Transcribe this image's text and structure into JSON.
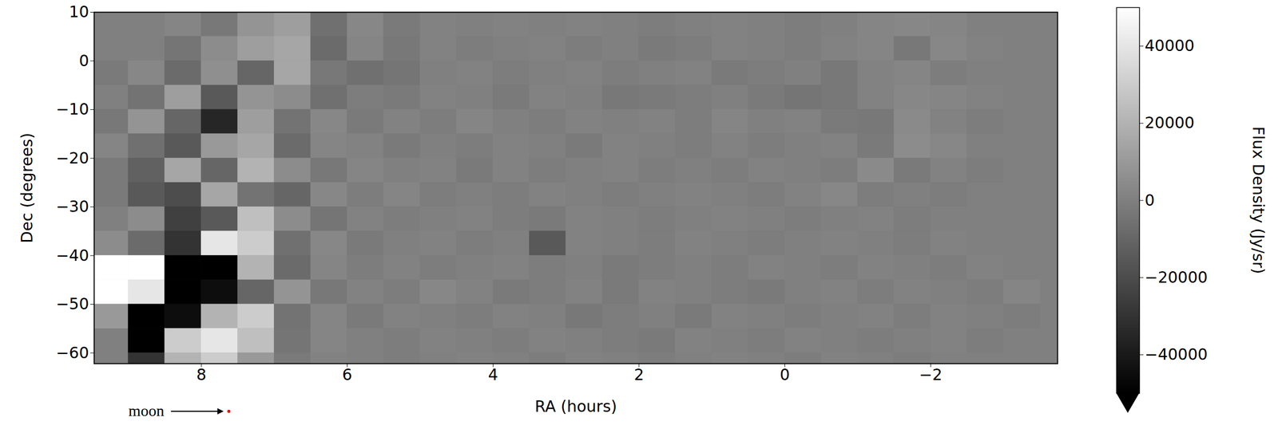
{
  "chart_data": {
    "type": "heatmap",
    "xlabel": "RA (hours)",
    "ylabel": "Dec (degrees)",
    "xlim": [
      9.47,
      -3.74
    ],
    "ylim": [
      -62.2,
      10
    ],
    "xticks": [
      8,
      6,
      4,
      2,
      0,
      {
        "value": -2,
        "label": "−2"
      }
    ],
    "yticks": [
      10,
      0,
      {
        "value": -10,
        "label": "−10"
      },
      {
        "value": -20,
        "label": "−20"
      },
      {
        "value": -30,
        "label": "−30"
      },
      {
        "value": -40,
        "label": "−40"
      },
      {
        "value": -50,
        "label": "−50"
      },
      {
        "value": -60,
        "label": "−60"
      }
    ],
    "ra_edges": [
      9.5,
      9,
      8.5,
      8,
      7.5,
      7,
      6.5,
      6,
      5.5,
      5,
      4.5,
      4,
      3.5,
      3,
      2.5,
      2,
      1.5,
      1,
      0.5,
      0,
      -0.5,
      -1,
      -1.5,
      -2,
      -2.5,
      -3,
      -3.5
    ],
    "dec_edges": [
      10,
      5,
      0,
      -5,
      -10,
      -15,
      -20,
      -25,
      -30,
      -35,
      -40,
      -45,
      -50,
      -55,
      -60,
      -65
    ],
    "cells": [
      [
        null,
        null,
        2000,
        -3000,
        8000,
        12000,
        -6000,
        3000,
        -2000,
        1000,
        0,
        1000,
        0,
        1000,
        0,
        -1000,
        0,
        1000,
        0,
        -1000,
        0,
        2000,
        3000,
        2000,
        null,
        null
      ],
      [
        null,
        0,
        -4000,
        5000,
        12000,
        15000,
        -8000,
        2000,
        -3000,
        1000,
        -1000,
        0,
        1000,
        -1000,
        0,
        -2000,
        -1000,
        1000,
        0,
        -1000,
        1000,
        2000,
        -3000,
        3000,
        1000,
        null
      ],
      [
        -2000,
        3000,
        -8000,
        6000,
        -10000,
        15000,
        -3000,
        -6000,
        -4000,
        0,
        1000,
        -1000,
        0,
        1000,
        -1000,
        0,
        1000,
        -2000,
        -1000,
        0,
        -3000,
        1000,
        2000,
        -1000,
        0,
        null
      ],
      [
        0,
        -5000,
        12000,
        -15000,
        8000,
        5000,
        -6000,
        -1000,
        -2000,
        1000,
        0,
        -2000,
        1000,
        0,
        -3000,
        -2000,
        -1000,
        0,
        -2000,
        -4000,
        -3000,
        1000,
        3000,
        2000,
        1000,
        null
      ],
      [
        -3000,
        8000,
        -10000,
        -35000,
        12000,
        -5000,
        3000,
        -2000,
        1000,
        -1000,
        2000,
        0,
        -1000,
        1000,
        0,
        1000,
        -1000,
        2000,
        0,
        1000,
        -2000,
        -3000,
        4000,
        1000,
        -1000,
        null
      ],
      [
        2000,
        -6000,
        -15000,
        10000,
        15000,
        -8000,
        2000,
        1000,
        -2000,
        0,
        -1000,
        1000,
        0,
        -2000,
        1000,
        0,
        -1000,
        1000,
        -1000,
        0,
        1000,
        -2000,
        5000,
        3000,
        0,
        null
      ],
      [
        -2000,
        -12000,
        15000,
        -10000,
        20000,
        5000,
        -3000,
        2000,
        0,
        1000,
        -2000,
        1000,
        -1000,
        0,
        1000,
        -1000,
        0,
        -1000,
        1000,
        0,
        -1000,
        4000,
        -2000,
        1000,
        -1000,
        null
      ],
      [
        -2000,
        -15000,
        -20000,
        15000,
        -5000,
        -10000,
        3000,
        -1000,
        2000,
        -1000,
        0,
        -1000,
        1000,
        0,
        -1000,
        0,
        1000,
        0,
        -1000,
        1000,
        3000,
        -1000,
        0,
        -1000,
        null,
        null
      ],
      [
        null,
        5000,
        -25000,
        -15000,
        25000,
        5000,
        -4000,
        1000,
        -1000,
        0,
        1000,
        -1000,
        -2000,
        1000,
        0,
        -1000,
        0,
        1000,
        0,
        -1000,
        0,
        1000,
        -1000,
        0,
        null,
        null
      ],
      [
        5000,
        -8000,
        -30000,
        40000,
        30000,
        -6000,
        3000,
        -2000,
        0,
        1000,
        -1000,
        0,
        -15000,
        1000,
        0,
        -1000,
        1000,
        0,
        -1000,
        0,
        1000,
        0,
        -1000,
        1000,
        0,
        null
      ],
      [
        50000,
        50000,
        -50000,
        -50000,
        20000,
        -8000,
        2000,
        -1000,
        1000,
        -1000,
        0,
        1000,
        -1000,
        0,
        -2000,
        -1000,
        0,
        -1000,
        1000,
        0,
        -1000,
        1000,
        0,
        -1000,
        1000,
        0
      ],
      [
        50000,
        40000,
        -50000,
        -45000,
        -10000,
        8000,
        -3000,
        1000,
        -1000,
        3000,
        1000,
        -2000,
        -1000,
        1000,
        -2000,
        1000,
        0,
        -1000,
        -2000,
        0,
        1000,
        -1000,
        1000,
        0,
        -1000,
        2000
      ],
      [
        10000,
        -50000,
        -45000,
        20000,
        30000,
        -5000,
        2000,
        -2000,
        1000,
        0,
        -1000,
        1000,
        0,
        -3000,
        -1000,
        0,
        -2000,
        1000,
        0,
        -1000,
        0,
        1000,
        -1000,
        1000,
        0,
        -1000
      ],
      [
        null,
        -50000,
        30000,
        40000,
        25000,
        -4000,
        2000,
        0,
        -1000,
        1000,
        0,
        -1000,
        1000,
        0,
        -1000,
        -2000,
        1000,
        0,
        -1000,
        1000,
        0,
        -1000,
        0,
        1000,
        -1000,
        0
      ],
      [
        null,
        -30000,
        20000,
        30000,
        10000,
        -2000,
        1000,
        0,
        -1000,
        0,
        1000,
        0,
        -1000,
        1000,
        0,
        -1000,
        0,
        1000,
        0,
        -1000,
        1000,
        0,
        -1000,
        0,
        null,
        null
      ]
    ],
    "colorbar": {
      "label": "Flux Density (Jy/sr)",
      "range": [
        -50000,
        50000
      ],
      "ticks": [
        {
          "value": -40000,
          "label": "−40000"
        },
        {
          "value": -20000,
          "label": "−20000"
        },
        0,
        20000,
        40000
      ]
    },
    "annotations": [
      {
        "text": "moon",
        "x": 7.62,
        "color": "red"
      }
    ]
  }
}
